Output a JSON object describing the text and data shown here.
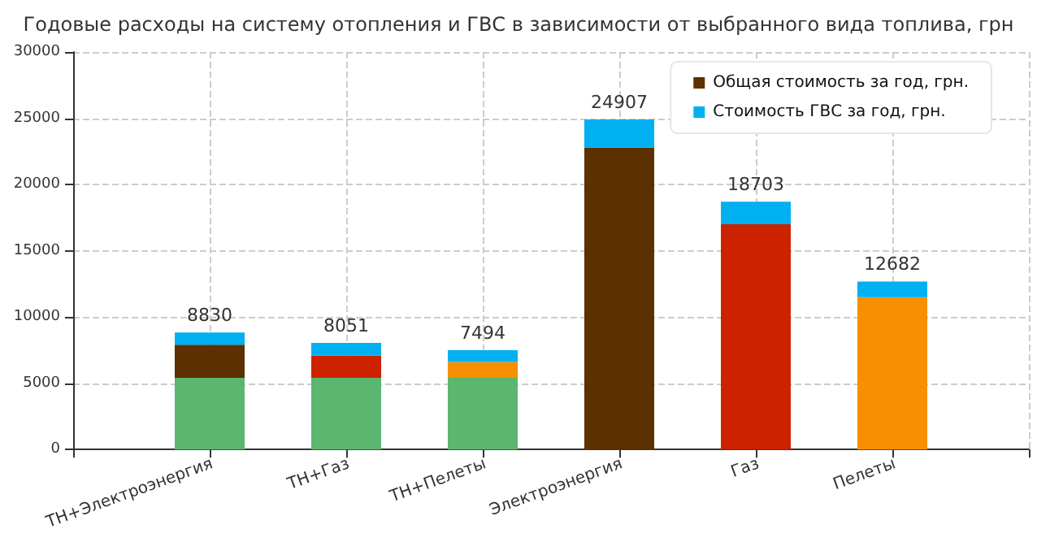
{
  "chart_data": {
    "type": "bar",
    "stacked": true,
    "title": "Годовые расходы на систему отопления и ГВС в зависимости от выбранного вида топлива, грн",
    "categories": [
      null,
      "ТН+Электроэнергия",
      "ТН+Газ",
      "ТН+Пелеты",
      "Электроэнергия",
      "Газ",
      "Пелеты",
      null
    ],
    "series": [
      {
        "color": "#5bb66f",
        "values": [
          null,
          5400,
          5400,
          5400,
          null,
          null,
          null,
          null
        ]
      },
      {
        "name": "Общая стоимость за год, грн.",
        "color": "#5c3000",
        "colors": [
          "#5c3000",
          "#5c3000",
          "#cc2200",
          "#f78f00",
          "#5c3000",
          "#cc2200",
          "#f78f00",
          "#5c3000"
        ],
        "values": [
          null,
          2500,
          1700,
          1200,
          22800,
          17000,
          11500,
          null
        ]
      },
      {
        "name": "Стоимость ГВС за год, грн.",
        "color": "#00b0f0",
        "values": [
          null,
          930,
          951,
          894,
          2107,
          1703,
          1182,
          null
        ]
      }
    ],
    "totals": [
      null,
      "8830",
      "8051",
      "7494",
      "24907",
      "18703",
      "12682",
      null
    ],
    "ylim": [
      0,
      30000
    ],
    "yticks": [
      0,
      5000,
      10000,
      15000,
      20000,
      25000,
      30000
    ],
    "grid": true,
    "legend": "top right"
  }
}
